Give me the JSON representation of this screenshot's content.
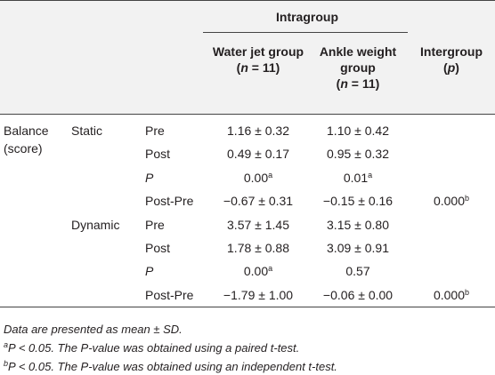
{
  "header": {
    "intragroup": "Intragroup",
    "columns": [
      {
        "lines": [
          "Water jet group"
        ],
        "sub": [
          "(",
          "n",
          " = 11)"
        ]
      },
      {
        "lines": [
          "Ankle weight",
          "group"
        ],
        "sub": [
          "(",
          "n",
          " = 11)"
        ]
      },
      {
        "lines": [
          "Intergroup"
        ],
        "sub": [
          "(",
          "p",
          ")"
        ]
      }
    ]
  },
  "table": {
    "measure": [
      "Balance",
      "(score)"
    ],
    "subgroups": [
      {
        "name": "Static",
        "rows": [
          {
            "stat": "Pre",
            "water_jet": {
              "text": "1.16 ± 0.32"
            },
            "ankle_weight": {
              "text": "1.10 ± 0.42"
            }
          },
          {
            "stat": "Post",
            "water_jet": {
              "text": "0.49 ± 0.17"
            },
            "ankle_weight": {
              "text": "0.95 ± 0.32"
            }
          },
          {
            "stat": "P",
            "italic": true,
            "water_jet": {
              "text": "0.00",
              "sup": "a"
            },
            "ankle_weight": {
              "text": "0.01",
              "sup": "a"
            }
          },
          {
            "stat": "Post-Pre",
            "water_jet": {
              "text": "−0.67 ± 0.31"
            },
            "ankle_weight": {
              "text": "−0.15 ± 0.16"
            },
            "intergroup": {
              "text": "0.000",
              "sup": "b"
            }
          }
        ]
      },
      {
        "name": "Dynamic",
        "rows": [
          {
            "stat": "Pre",
            "water_jet": {
              "text": "3.57 ± 1.45"
            },
            "ankle_weight": {
              "text": "3.15 ± 0.80"
            }
          },
          {
            "stat": "Post",
            "water_jet": {
              "text": "1.78 ± 0.88"
            },
            "ankle_weight": {
              "text": "3.09 ± 0.91"
            }
          },
          {
            "stat": "P",
            "italic": true,
            "water_jet": {
              "text": "0.00",
              "sup": "a"
            },
            "ankle_weight": {
              "text": "0.57"
            }
          },
          {
            "stat": "Post-Pre",
            "water_jet": {
              "text": "−1.79 ± 1.00"
            },
            "ankle_weight": {
              "text": "−0.06 ± 0.00"
            },
            "intergroup": {
              "text": "0.000",
              "sup": "b"
            }
          }
        ]
      }
    ]
  },
  "notes": [
    {
      "text": "Data are presented as mean ± SD."
    },
    {
      "sup": "a",
      "text": "P < 0.05. The P-value was obtained using a paired t-test."
    },
    {
      "sup": "b",
      "text": "P < 0.05. The P-value was obtained using an independent t-test."
    }
  ]
}
